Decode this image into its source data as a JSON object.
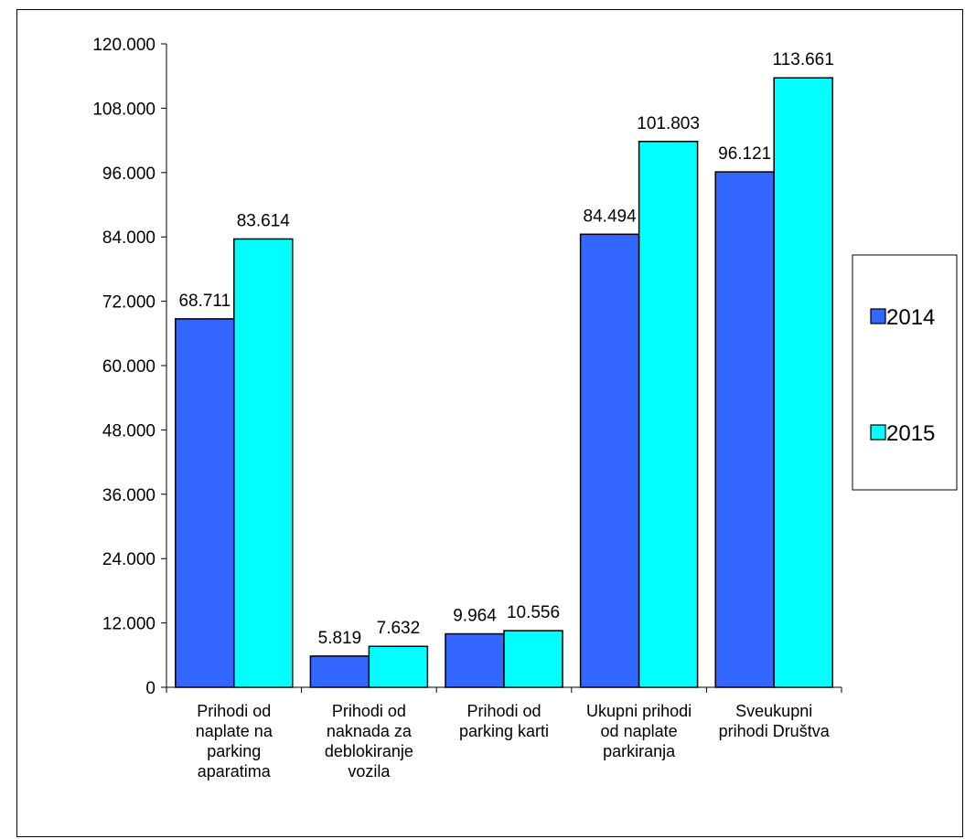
{
  "chart_data": {
    "type": "bar",
    "categories": [
      [
        "Prihodi od",
        "naplate na",
        "parking",
        "aparatima"
      ],
      [
        "Prihodi od",
        "naknada za",
        "deblokiranje",
        "vozila"
      ],
      [
        "Prihodi od",
        "parking karti"
      ],
      [
        "Ukupni prihodi",
        "od naplate",
        "parkiranja"
      ],
      [
        "Sveukupni",
        "prihodi Društva"
      ]
    ],
    "series": [
      {
        "name": "2014",
        "values": [
          68711,
          5819,
          9964,
          84494,
          96121
        ],
        "labels": [
          "68.711",
          "5.819",
          "9.964",
          "84.494",
          "96.121"
        ],
        "color": "#3366FF"
      },
      {
        "name": "2015",
        "values": [
          83614,
          7632,
          10556,
          101803,
          113661
        ],
        "labels": [
          "83.614",
          "7.632",
          "10.556",
          "101.803",
          "113.661"
        ],
        "color": "#00FFFF"
      }
    ],
    "yticks": [
      0,
      12000,
      24000,
      36000,
      48000,
      60000,
      72000,
      84000,
      96000,
      108000,
      120000
    ],
    "ytick_labels": [
      "0",
      "12.000",
      "24.000",
      "36.000",
      "48.000",
      "60.000",
      "72.000",
      "84.000",
      "96.000",
      "108.000",
      "120.000"
    ],
    "ylim": [
      0,
      120000
    ],
    "grid": false,
    "legend_position": "right"
  }
}
